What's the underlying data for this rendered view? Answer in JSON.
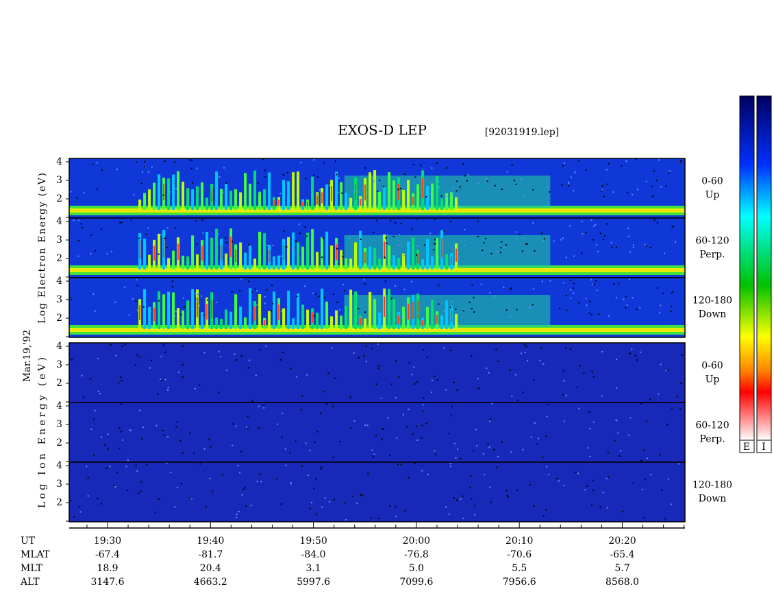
{
  "title": "EXOS-D LEP",
  "file": "[92031919.lep]",
  "date": "Mar.19,'92",
  "groups": [
    {
      "axis_label": "Log Electron Energy (eV)",
      "panels": [
        {
          "angle": "0-60",
          "direction": "Up"
        },
        {
          "angle": "60-120",
          "direction": "Perp."
        },
        {
          "angle": "120-180",
          "direction": "Down"
        }
      ]
    },
    {
      "axis_label": "Log Ion Energy (eV)",
      "panels": [
        {
          "angle": "0-60",
          "direction": "Up"
        },
        {
          "angle": "60-120",
          "direction": "Perp."
        },
        {
          "angle": "120-180",
          "direction": "Down"
        }
      ]
    }
  ],
  "yticks": [
    2,
    3,
    4
  ],
  "time_rows": [
    {
      "label": "UT",
      "values": [
        "19:30",
        "19:40",
        "19:50",
        "20:00",
        "20:10",
        "20:20"
      ]
    },
    {
      "label": "MLAT",
      "values": [
        "-67.4",
        "-81.7",
        "-84.0",
        "-76.8",
        "-70.6",
        "-65.4"
      ]
    },
    {
      "label": "MLT",
      "values": [
        "18.9",
        "20.4",
        "3.1",
        "5.0",
        "5.5",
        "5.7"
      ]
    },
    {
      "label": "ALT",
      "values": [
        "3147.6",
        "4663.2",
        "5997.6",
        "7099.6",
        "7956.6",
        "8568.0"
      ]
    }
  ],
  "colorbar_labels": [
    "E",
    "I"
  ]
}
